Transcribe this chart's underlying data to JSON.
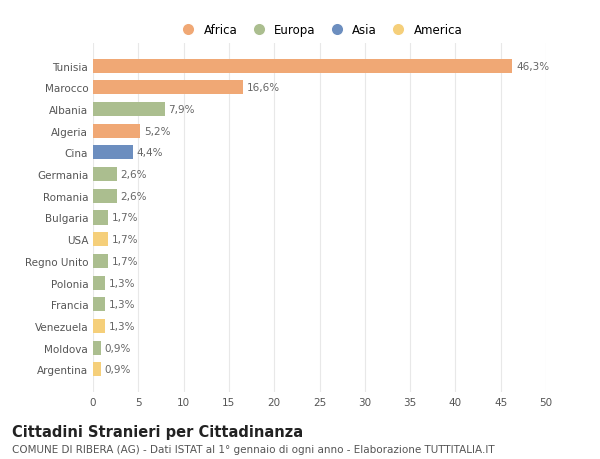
{
  "countries": [
    "Tunisia",
    "Marocco",
    "Albania",
    "Algeria",
    "Cina",
    "Germania",
    "Romania",
    "Bulgaria",
    "USA",
    "Regno Unito",
    "Polonia",
    "Francia",
    "Venezuela",
    "Moldova",
    "Argentina"
  ],
  "values": [
    46.3,
    16.6,
    7.9,
    5.2,
    4.4,
    2.6,
    2.6,
    1.7,
    1.7,
    1.7,
    1.3,
    1.3,
    1.3,
    0.9,
    0.9
  ],
  "labels": [
    "46,3%",
    "16,6%",
    "7,9%",
    "5,2%",
    "4,4%",
    "2,6%",
    "2,6%",
    "1,7%",
    "1,7%",
    "1,7%",
    "1,3%",
    "1,3%",
    "1,3%",
    "0,9%",
    "0,9%"
  ],
  "colors": [
    "#f0a875",
    "#f0a875",
    "#abbe8f",
    "#f0a875",
    "#6c8ebf",
    "#abbe8f",
    "#abbe8f",
    "#abbe8f",
    "#f5cf7a",
    "#abbe8f",
    "#abbe8f",
    "#abbe8f",
    "#f5cf7a",
    "#abbe8f",
    "#f5cf7a"
  ],
  "continent_labels": [
    "Africa",
    "Europa",
    "Asia",
    "America"
  ],
  "continent_colors": [
    "#f0a875",
    "#abbe8f",
    "#6c8ebf",
    "#f5cf7a"
  ],
  "xlim": [
    0,
    50
  ],
  "xticks": [
    0,
    5,
    10,
    15,
    20,
    25,
    30,
    35,
    40,
    45,
    50
  ],
  "title": "Cittadini Stranieri per Cittadinanza",
  "subtitle": "COMUNE DI RIBERA (AG) - Dati ISTAT al 1° gennaio di ogni anno - Elaborazione TUTTITALIA.IT",
  "bg_color": "#ffffff",
  "grid_color": "#e8e8e8",
  "bar_height": 0.65,
  "label_fontsize": 7.5,
  "tick_fontsize": 7.5,
  "title_fontsize": 10.5,
  "subtitle_fontsize": 7.5
}
